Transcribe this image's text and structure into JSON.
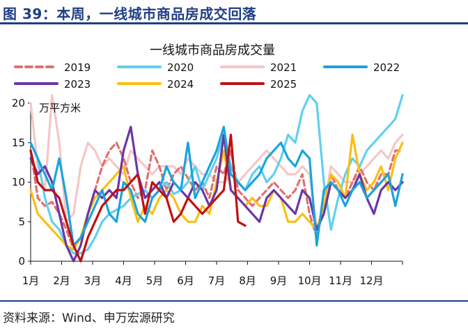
{
  "header": {
    "title": "图 39：本周，一线城市商品房成交回落"
  },
  "footer": {
    "source": "资料来源：Wind、申万宏源研究"
  },
  "chart_data": {
    "type": "line",
    "title": "一线城市商品房成交量",
    "unit_label": "万平方米",
    "ylim": [
      0,
      20
    ],
    "yticks": [
      "0",
      "5",
      "10",
      "15",
      "20"
    ],
    "x_tick_labels": [
      "1月",
      "2月",
      "3月",
      "4月",
      "5月",
      "6月",
      "7月",
      "8月",
      "9月",
      "10月",
      "11月",
      "12月"
    ],
    "xlim": [
      1,
      53
    ],
    "series": [
      {
        "name": "2019",
        "color": "#e07070",
        "dash": true,
        "values": [
          14,
          8,
          7,
          7.5,
          6,
          4,
          1.5,
          3,
          6,
          9,
          12,
          14,
          15,
          13,
          10,
          8,
          9,
          14,
          12,
          9,
          11,
          12,
          10.5,
          9,
          10,
          8,
          12,
          11,
          14,
          9,
          8,
          7,
          8,
          9,
          10,
          9,
          8,
          9,
          11,
          6,
          3,
          7,
          11,
          9,
          8,
          10,
          12,
          10,
          9,
          11,
          11,
          14,
          14
        ]
      },
      {
        "name": "2020",
        "color": "#5fd0f0",
        "dash": false,
        "values": [
          15,
          13,
          8,
          5,
          4,
          2,
          1,
          1,
          1.5,
          3,
          5,
          6,
          6.5,
          7,
          8,
          8.5,
          9,
          8,
          9,
          10,
          8.5,
          9,
          10,
          12,
          9,
          11,
          13,
          16,
          12,
          10,
          9,
          11,
          12,
          10,
          11,
          13,
          16,
          15,
          19,
          21,
          20,
          10,
          4,
          8,
          11,
          13,
          12,
          14,
          15,
          16,
          17,
          18,
          21
        ]
      },
      {
        "name": "2021",
        "color": "#f5c7c7",
        "dash": false,
        "values": [
          20,
          12,
          9,
          21,
          15,
          5,
          6,
          12,
          15,
          14,
          12,
          13,
          12,
          11,
          14,
          13,
          12,
          11,
          12,
          12,
          12,
          11,
          13,
          12,
          11,
          11,
          10,
          10,
          11,
          10,
          11,
          12,
          13,
          14,
          13,
          12,
          11,
          11,
          12,
          11,
          4,
          7,
          12,
          11,
          10,
          10,
          11,
          12,
          13,
          14,
          13,
          15,
          16
        ]
      },
      {
        "name": "2022",
        "color": "#1aa4dc",
        "dash": false,
        "values": [
          15,
          13,
          11,
          9,
          13,
          8,
          2,
          3,
          5,
          7,
          9,
          6,
          5,
          10,
          9,
          6,
          5,
          8,
          9,
          12,
          10,
          9,
          15,
          8,
          10,
          12,
          14,
          17,
          11,
          10,
          9,
          10,
          11,
          13,
          14,
          15,
          13,
          12,
          14,
          13,
          2,
          9,
          10,
          9,
          7,
          9,
          10,
          8,
          9,
          10,
          11,
          7,
          11
        ]
      },
      {
        "name": "2023",
        "color": "#6b35a6",
        "dash": false,
        "values": [
          13,
          11,
          12,
          10,
          6,
          2,
          0,
          2,
          6,
          9,
          8,
          9,
          8,
          14,
          17,
          11,
          8,
          9,
          10,
          8,
          10,
          9,
          8,
          10,
          9,
          7,
          9,
          16,
          9,
          8,
          7,
          6,
          5,
          8,
          9,
          8,
          7,
          6,
          9,
          8,
          4,
          6,
          10,
          9,
          8,
          9,
          11,
          8,
          6,
          9,
          10,
          9,
          10
        ]
      },
      {
        "name": "2024",
        "color": "#fbbf13",
        "dash": false,
        "values": [
          9,
          6,
          5,
          4,
          3,
          2,
          1.5,
          3,
          6,
          8,
          9,
          10,
          11,
          12,
          8,
          5,
          7,
          6,
          8,
          9,
          8,
          6,
          5,
          5,
          7,
          6,
          10,
          14,
          9,
          8,
          7,
          8,
          7,
          7,
          9,
          8,
          5,
          5,
          6,
          5,
          4,
          7,
          11,
          10,
          8,
          16,
          11,
          9,
          10,
          12,
          9,
          13,
          15
        ]
      },
      {
        "name": "2025",
        "color": "#c01010",
        "dash": false,
        "values": [
          14,
          10,
          9,
          9,
          8,
          5,
          2,
          0,
          3,
          5,
          7,
          8,
          9,
          9,
          10,
          11,
          6,
          10,
          9,
          8,
          5,
          6,
          8,
          7,
          6,
          7,
          8,
          9,
          16,
          5,
          4.5
        ]
      }
    ]
  }
}
